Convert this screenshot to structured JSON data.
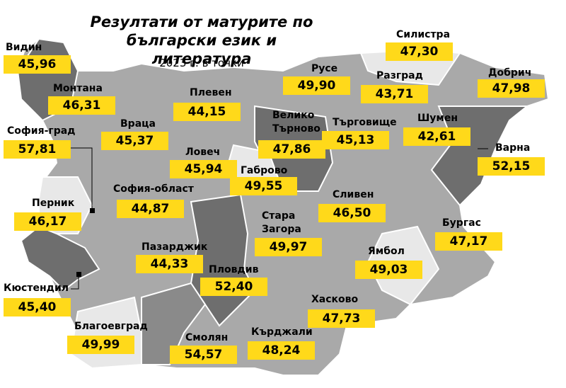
{
  "chart_data": {
    "type": "map",
    "title": "Резултати от матурите по български език и литература",
    "subtitle": "2023 г. в точки",
    "color": "#ffd91a",
    "categories": [
      "Видин",
      "Монтана",
      "Враца",
      "София-град",
      "Плевен",
      "Ловеч",
      "Габрово",
      "Велико Търново",
      "Русе",
      "Разград",
      "Силистра",
      "Добрич",
      "Търговище",
      "Шумен",
      "Варна",
      "Перник",
      "София-област",
      "Сливен",
      "Стара Загора",
      "Бургас",
      "Пазарджик",
      "Ямбол",
      "Пловдив",
      "Кюстендил",
      "Хасково",
      "Благоевград",
      "Смолян",
      "Кърджали"
    ],
    "values": [
      45.96,
      46.31,
      45.37,
      57.81,
      44.15,
      45.94,
      49.55,
      47.86,
      49.9,
      43.71,
      47.3,
      47.98,
      45.13,
      42.61,
      52.15,
      46.17,
      44.87,
      46.5,
      49.97,
      47.17,
      44.33,
      49.03,
      52.4,
      45.4,
      47.73,
      49.99,
      54.57,
      48.24
    ],
    "value_labels": [
      "45,96",
      "46,31",
      "45,37",
      "57,81",
      "44,15",
      "45,94",
      "49,55",
      "47,86",
      "49,90",
      "43,71",
      "47,30",
      "47,98",
      "45,13",
      "42,61",
      "52,15",
      "46,17",
      "44,87",
      "46,50",
      "49,97",
      "47,17",
      "44,33",
      "49,03",
      "52,40",
      "45,40",
      "47,73",
      "49,99",
      "54,57",
      "48,24"
    ]
  }
}
